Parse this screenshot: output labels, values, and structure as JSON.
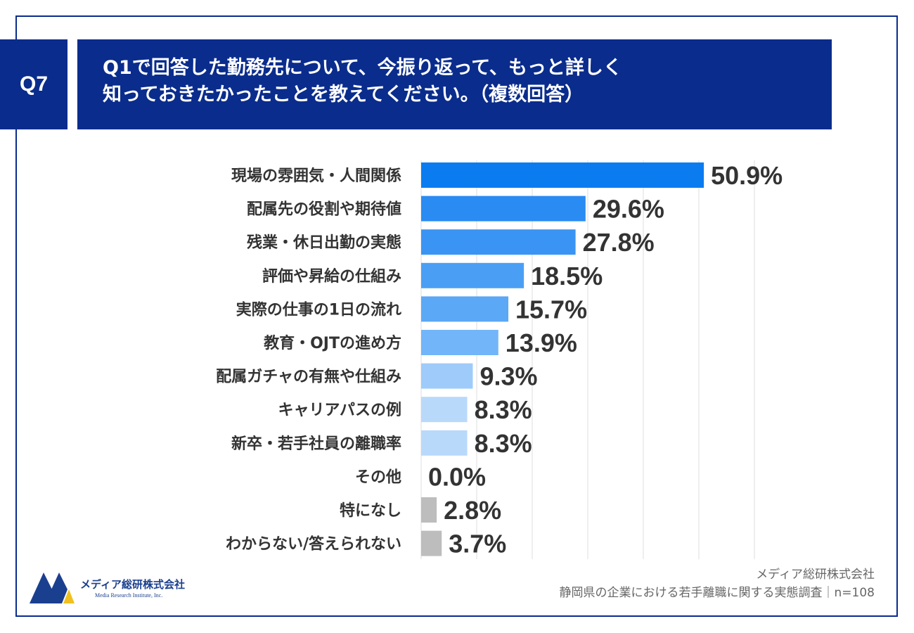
{
  "header": {
    "badge": "Q7",
    "title_line1": "Q1で回答した勤務先について、今振り返って、もっと詳しく",
    "title_line2": "知っておきたかったことを教えてください。（複数回答）"
  },
  "colors": {
    "navy": "#0a2c8c",
    "bar_shades": [
      "#0a7cf0",
      "#2a8bf2",
      "#3a94f3",
      "#4a9ff5",
      "#5aa8f6",
      "#72b5f8",
      "#9fcbfa",
      "#b9d9fb",
      "#b9d9fb",
      "#b9d9fb"
    ],
    "gray": "#bdbdbd"
  },
  "chart_data": {
    "type": "bar",
    "orientation": "horizontal",
    "categories": [
      "現場の雰囲気・人間関係",
      "配属先の役割や期待値",
      "残業・休日出勤の実態",
      "評価や昇給の仕組み",
      "実際の仕事の1日の流れ",
      "教育・OJTの進め方",
      "配属ガチャの有無や仕組み",
      "キャリアパスの例",
      "新卒・若手社員の離職率",
      "その他",
      "特になし",
      "わからない/答えられない"
    ],
    "values": [
      50.9,
      29.6,
      27.8,
      18.5,
      15.7,
      13.9,
      9.3,
      8.3,
      8.3,
      0.0,
      2.8,
      3.7
    ],
    "value_labels": [
      "50.9%",
      "29.6%",
      "27.8%",
      "18.5%",
      "15.7%",
      "13.9%",
      "9.3%",
      "8.3%",
      "8.3%",
      "0.0%",
      "2.8%",
      "3.7%"
    ],
    "xlim": [
      0,
      60
    ],
    "grid": true,
    "unit": "%"
  },
  "footer": {
    "logo_name": "メディア総研株式会社",
    "logo_en": "Media Research Institute, Inc.",
    "source_line1": "メディア総研株式会社",
    "source_line2": "静岡県の企業における若手離職に関する実態調査｜n=108"
  }
}
